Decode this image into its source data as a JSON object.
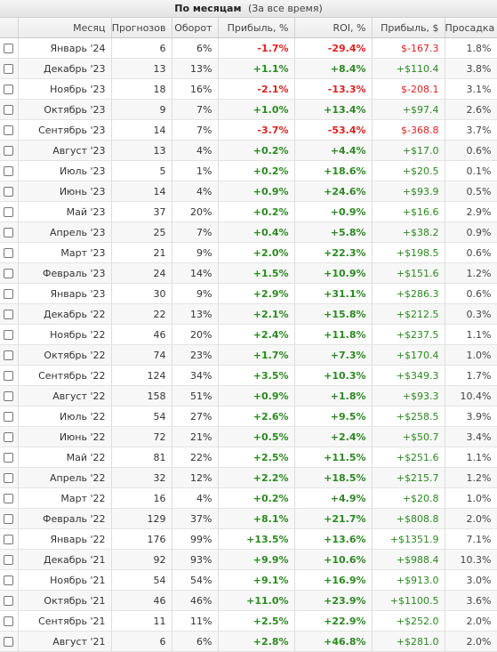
{
  "header": {
    "title": "По месяцам",
    "subtitle": "(За все время)"
  },
  "columns": {
    "month": "Месяц",
    "forecasts": "Прогнозов",
    "turnover": "Оборот",
    "profit_pct": "Прибыль, %",
    "roi": "ROI, %",
    "profit_usd": "Прибыль, $",
    "drawdown": "Просадка"
  },
  "colors": {
    "positive": "#2a8a1f",
    "negative": "#e02020"
  },
  "rows": [
    {
      "month": "Январь '24",
      "forecasts": "6",
      "turnover": "6%",
      "profit_pct": "-1.7%",
      "roi": "-29.4%",
      "profit_usd": "$-167.3",
      "drawdown": "1.8%",
      "sign": "neg"
    },
    {
      "month": "Декабрь '23",
      "forecasts": "13",
      "turnover": "13%",
      "profit_pct": "+1.1%",
      "roi": "+8.4%",
      "profit_usd": "+$110.4",
      "drawdown": "3.8%",
      "sign": "pos"
    },
    {
      "month": "Ноябрь '23",
      "forecasts": "18",
      "turnover": "16%",
      "profit_pct": "-2.1%",
      "roi": "-13.3%",
      "profit_usd": "$-208.1",
      "drawdown": "3.1%",
      "sign": "neg"
    },
    {
      "month": "Октябрь '23",
      "forecasts": "9",
      "turnover": "7%",
      "profit_pct": "+1.0%",
      "roi": "+13.4%",
      "profit_usd": "+$97.4",
      "drawdown": "2.6%",
      "sign": "pos"
    },
    {
      "month": "Сентябрь '23",
      "forecasts": "14",
      "turnover": "7%",
      "profit_pct": "-3.7%",
      "roi": "-53.4%",
      "profit_usd": "$-368.8",
      "drawdown": "3.7%",
      "sign": "neg"
    },
    {
      "month": "Август '23",
      "forecasts": "13",
      "turnover": "4%",
      "profit_pct": "+0.2%",
      "roi": "+4.4%",
      "profit_usd": "+$17.0",
      "drawdown": "0.6%",
      "sign": "pos"
    },
    {
      "month": "Июль '23",
      "forecasts": "5",
      "turnover": "1%",
      "profit_pct": "+0.2%",
      "roi": "+18.6%",
      "profit_usd": "+$20.5",
      "drawdown": "0.1%",
      "sign": "pos"
    },
    {
      "month": "Июнь '23",
      "forecasts": "14",
      "turnover": "4%",
      "profit_pct": "+0.9%",
      "roi": "+24.6%",
      "profit_usd": "+$93.9",
      "drawdown": "0.5%",
      "sign": "pos"
    },
    {
      "month": "Май '23",
      "forecasts": "37",
      "turnover": "20%",
      "profit_pct": "+0.2%",
      "roi": "+0.9%",
      "profit_usd": "+$16.6",
      "drawdown": "2.9%",
      "sign": "pos"
    },
    {
      "month": "Апрель '23",
      "forecasts": "25",
      "turnover": "7%",
      "profit_pct": "+0.4%",
      "roi": "+5.8%",
      "profit_usd": "+$38.2",
      "drawdown": "0.9%",
      "sign": "pos"
    },
    {
      "month": "Март '23",
      "forecasts": "21",
      "turnover": "9%",
      "profit_pct": "+2.0%",
      "roi": "+22.3%",
      "profit_usd": "+$198.5",
      "drawdown": "0.6%",
      "sign": "pos"
    },
    {
      "month": "Февраль '23",
      "forecasts": "24",
      "turnover": "14%",
      "profit_pct": "+1.5%",
      "roi": "+10.9%",
      "profit_usd": "+$151.6",
      "drawdown": "1.2%",
      "sign": "pos"
    },
    {
      "month": "Январь '23",
      "forecasts": "30",
      "turnover": "9%",
      "profit_pct": "+2.9%",
      "roi": "+31.1%",
      "profit_usd": "+$286.3",
      "drawdown": "0.6%",
      "sign": "pos"
    },
    {
      "month": "Декабрь '22",
      "forecasts": "22",
      "turnover": "13%",
      "profit_pct": "+2.1%",
      "roi": "+15.8%",
      "profit_usd": "+$212.5",
      "drawdown": "0.3%",
      "sign": "pos"
    },
    {
      "month": "Ноябрь '22",
      "forecasts": "46",
      "turnover": "20%",
      "profit_pct": "+2.4%",
      "roi": "+11.8%",
      "profit_usd": "+$237.5",
      "drawdown": "1.1%",
      "sign": "pos"
    },
    {
      "month": "Октябрь '22",
      "forecasts": "74",
      "turnover": "23%",
      "profit_pct": "+1.7%",
      "roi": "+7.3%",
      "profit_usd": "+$170.4",
      "drawdown": "1.0%",
      "sign": "pos"
    },
    {
      "month": "Сентябрь '22",
      "forecasts": "124",
      "turnover": "34%",
      "profit_pct": "+3.5%",
      "roi": "+10.3%",
      "profit_usd": "+$349.3",
      "drawdown": "1.7%",
      "sign": "pos"
    },
    {
      "month": "Август '22",
      "forecasts": "158",
      "turnover": "51%",
      "profit_pct": "+0.9%",
      "roi": "+1.8%",
      "profit_usd": "+$93.3",
      "drawdown": "10.4%",
      "sign": "pos"
    },
    {
      "month": "Июль '22",
      "forecasts": "54",
      "turnover": "27%",
      "profit_pct": "+2.6%",
      "roi": "+9.5%",
      "profit_usd": "+$258.5",
      "drawdown": "3.9%",
      "sign": "pos"
    },
    {
      "month": "Июнь '22",
      "forecasts": "72",
      "turnover": "21%",
      "profit_pct": "+0.5%",
      "roi": "+2.4%",
      "profit_usd": "+$50.7",
      "drawdown": "3.4%",
      "sign": "pos"
    },
    {
      "month": "Май '22",
      "forecasts": "81",
      "turnover": "22%",
      "profit_pct": "+2.5%",
      "roi": "+11.5%",
      "profit_usd": "+$251.6",
      "drawdown": "1.1%",
      "sign": "pos"
    },
    {
      "month": "Апрель '22",
      "forecasts": "32",
      "turnover": "12%",
      "profit_pct": "+2.2%",
      "roi": "+18.5%",
      "profit_usd": "+$215.7",
      "drawdown": "1.2%",
      "sign": "pos"
    },
    {
      "month": "Март '22",
      "forecasts": "16",
      "turnover": "4%",
      "profit_pct": "+0.2%",
      "roi": "+4.9%",
      "profit_usd": "+$20.8",
      "drawdown": "1.0%",
      "sign": "pos"
    },
    {
      "month": "Февраль '22",
      "forecasts": "129",
      "turnover": "37%",
      "profit_pct": "+8.1%",
      "roi": "+21.7%",
      "profit_usd": "+$808.8",
      "drawdown": "2.0%",
      "sign": "pos"
    },
    {
      "month": "Январь '22",
      "forecasts": "176",
      "turnover": "99%",
      "profit_pct": "+13.5%",
      "roi": "+13.6%",
      "profit_usd": "+$1351.9",
      "drawdown": "7.1%",
      "sign": "pos"
    },
    {
      "month": "Декабрь '21",
      "forecasts": "92",
      "turnover": "93%",
      "profit_pct": "+9.9%",
      "roi": "+10.6%",
      "profit_usd": "+$988.4",
      "drawdown": "10.3%",
      "sign": "pos"
    },
    {
      "month": "Ноябрь '21",
      "forecasts": "54",
      "turnover": "54%",
      "profit_pct": "+9.1%",
      "roi": "+16.9%",
      "profit_usd": "+$913.0",
      "drawdown": "3.0%",
      "sign": "pos"
    },
    {
      "month": "Октябрь '21",
      "forecasts": "46",
      "turnover": "46%",
      "profit_pct": "+11.0%",
      "roi": "+23.9%",
      "profit_usd": "+$1100.5",
      "drawdown": "3.6%",
      "sign": "pos"
    },
    {
      "month": "Сентябрь '21",
      "forecasts": "11",
      "turnover": "11%",
      "profit_pct": "+2.5%",
      "roi": "+22.9%",
      "profit_usd": "+$252.0",
      "drawdown": "2.0%",
      "sign": "pos"
    },
    {
      "month": "Август '21",
      "forecasts": "6",
      "turnover": "6%",
      "profit_pct": "+2.8%",
      "roi": "+46.8%",
      "profit_usd": "+$281.0",
      "drawdown": "2.0%",
      "sign": "pos"
    }
  ]
}
